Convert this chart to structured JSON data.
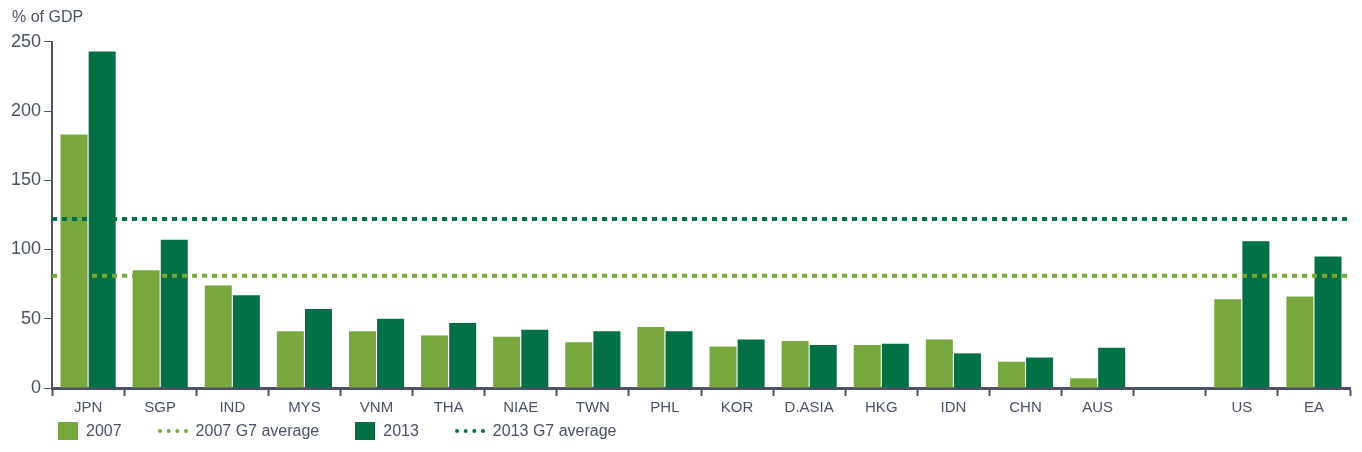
{
  "chart_data": {
    "type": "bar",
    "ylabel": "% of GDP",
    "categories": [
      "JPN",
      "SGP",
      "IND",
      "MYS",
      "VNM",
      "THA",
      "NIAE",
      "TWN",
      "PHL",
      "KOR",
      "D.ASIA",
      "HKG",
      "IDN",
      "CHN",
      "AUS",
      null,
      "US",
      "EA"
    ],
    "series": [
      {
        "name": "2007",
        "color": "#78a73e",
        "values": [
          183,
          85,
          74,
          41,
          41,
          38,
          37,
          33,
          44,
          30,
          34,
          31,
          35,
          19,
          7,
          null,
          64,
          66
        ]
      },
      {
        "name": "2013",
        "color": "#017045",
        "values": [
          243,
          107,
          67,
          57,
          50,
          47,
          42,
          41,
          41,
          35,
          31,
          32,
          25,
          22,
          29,
          null,
          106,
          95
        ]
      }
    ],
    "ylim": [
      0,
      250
    ],
    "yticks": [
      0,
      50,
      100,
      150,
      200,
      250
    ],
    "grid": false,
    "legend": "bottom",
    "ref_lines": [
      {
        "axis": "y",
        "value": 81,
        "label": "2007 G7 average",
        "color": "#78a73e",
        "line_style": "dotted"
      },
      {
        "axis": "y",
        "value": 122,
        "label": "2013 G7 average",
        "color": "#017045",
        "line_style": "dotted"
      }
    ]
  }
}
